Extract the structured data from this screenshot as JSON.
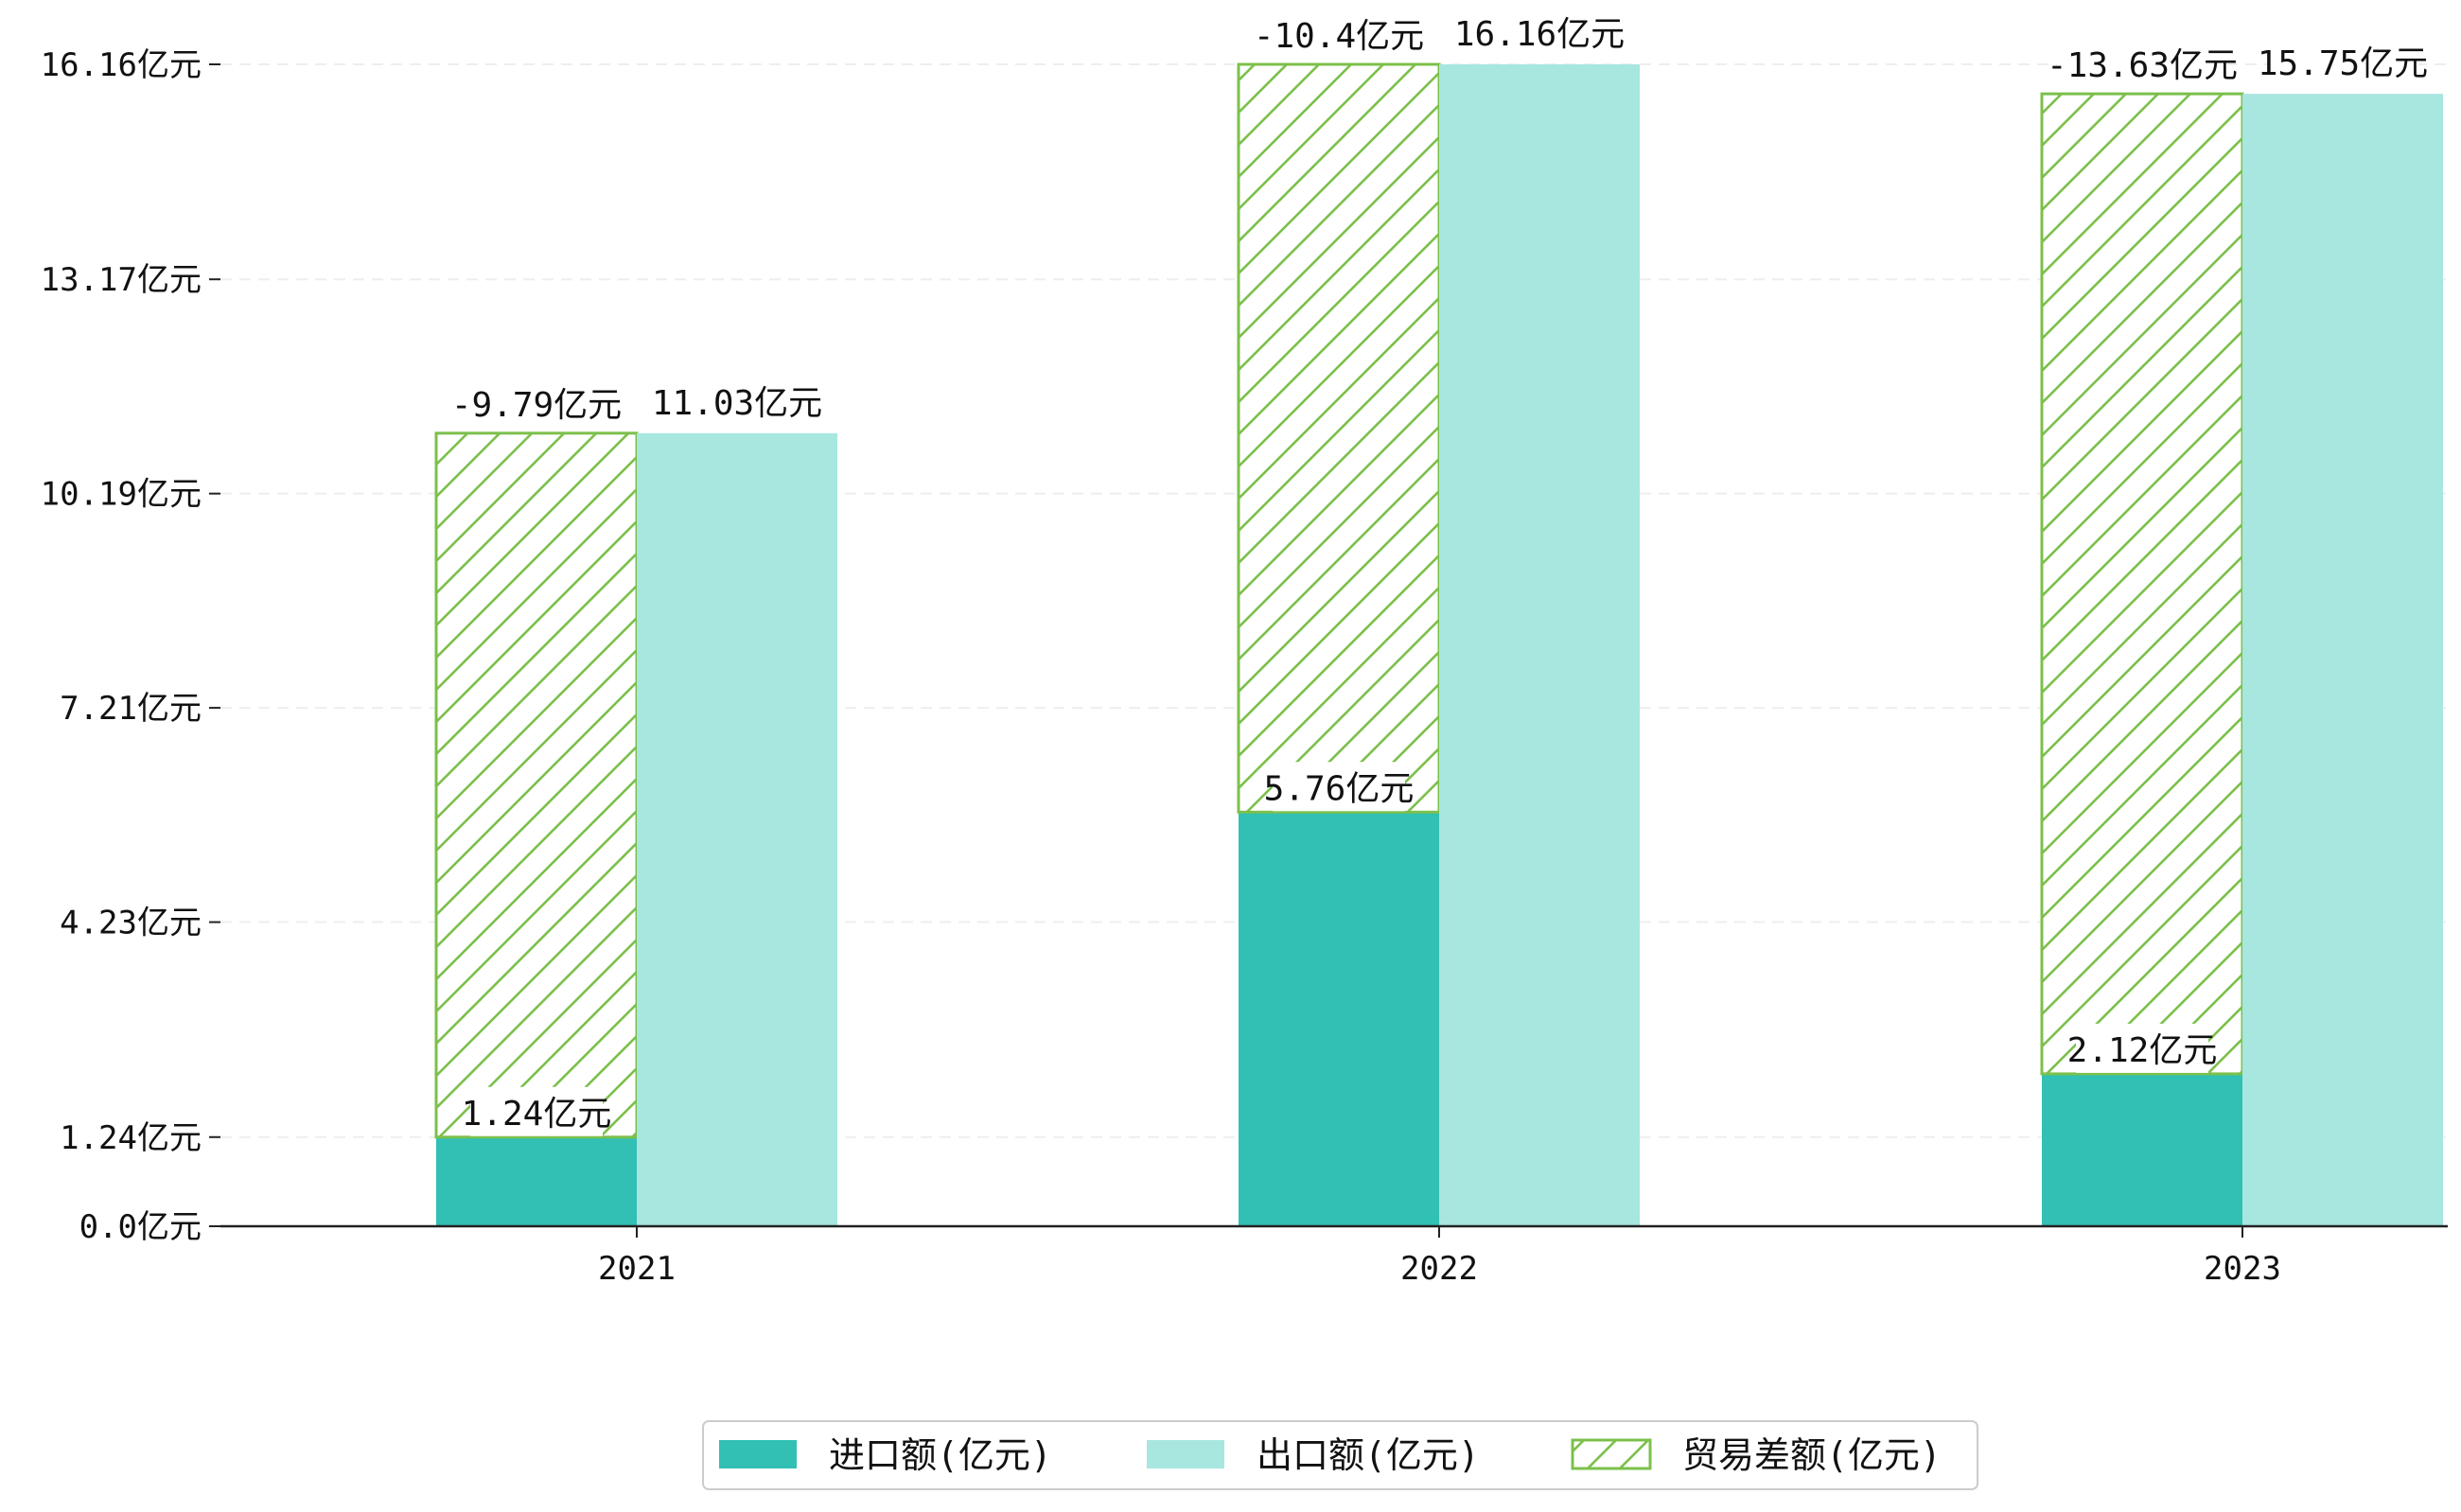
{
  "chart_data": {
    "type": "bar",
    "title": "",
    "xlabel": "",
    "ylabel": "",
    "categories": [
      "2021",
      "2022",
      "2023"
    ],
    "ylim": [
      0,
      16.5
    ],
    "yticks": [
      0.0,
      1.24,
      4.23,
      7.21,
      10.19,
      13.17,
      16.16
    ],
    "ytick_labels": [
      "0.0亿元",
      "1.24亿元",
      "4.23亿元",
      "7.21亿元",
      "10.19亿元",
      "13.17亿元",
      "16.16亿元"
    ],
    "grid": "y-dashed",
    "legend_position": "bottom-center",
    "series": [
      {
        "name": "进口额(亿元)",
        "values": [
          1.24,
          5.76,
          2.12
        ],
        "labels": [
          "1.24亿元",
          "5.76亿元",
          "2.12亿元"
        ],
        "color": "#31c0b3"
      },
      {
        "name": "出口额(亿元)",
        "values": [
          11.03,
          16.16,
          15.75
        ],
        "labels": [
          "11.03亿元",
          "16.16亿元",
          "15.75亿元"
        ],
        "color": "#a8e6e0"
      },
      {
        "name": "贸易差额(亿元)",
        "values": [
          -9.79,
          -10.4,
          -13.63
        ],
        "labels": [
          "-9.79亿元",
          "-10.4亿元",
          "-13.63亿元"
        ],
        "color": "#7cc04b",
        "style": "hatched",
        "stacked_on": "进口额(亿元)",
        "note": "drawn with magnitude stacked on top of import bar"
      }
    ]
  }
}
